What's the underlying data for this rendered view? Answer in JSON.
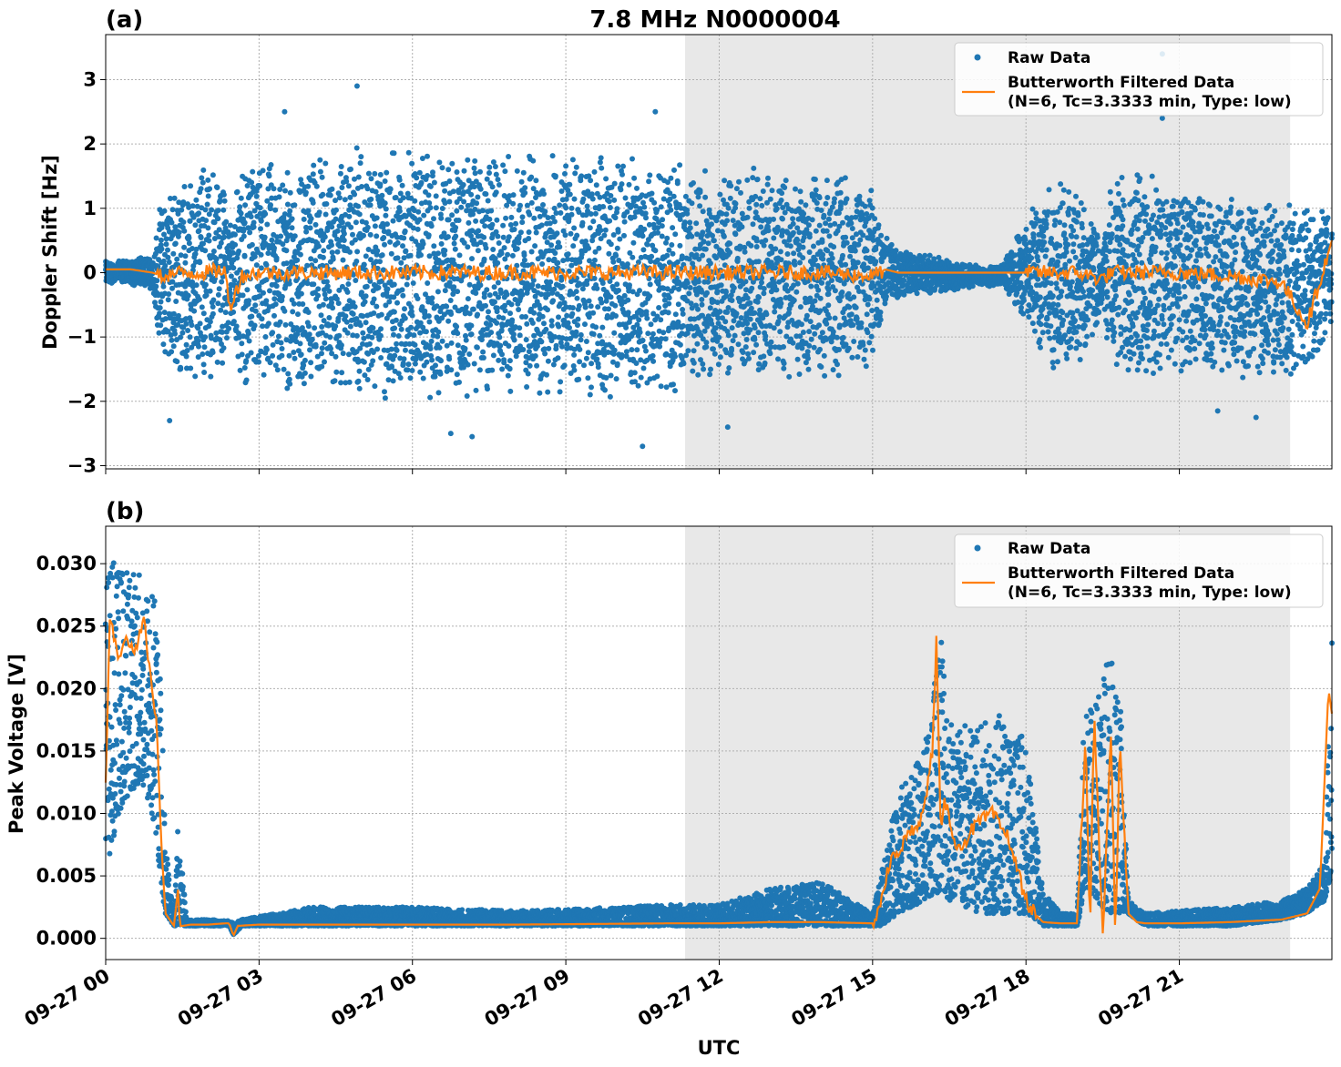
{
  "title": "7.8 MHz N0000004",
  "xlabel": "UTC",
  "x_tick_labels": [
    "09-27 00",
    "09-27 03",
    "09-27 06",
    "09-27 09",
    "09-27 12",
    "09-27 15",
    "09-27 18",
    "09-27 21"
  ],
  "colors": {
    "raw": "#1f77b4",
    "filtered": "#ff7f0e",
    "night_shade": "#e8e8e8"
  },
  "chart_data": [
    {
      "type": "scatter",
      "panel_label": "(a)",
      "ylabel": "Doppler Shift [Hz]",
      "xlim": [
        "2023-09-27 00:00",
        "2023-09-27 23:59"
      ],
      "ylim": [
        -3.05,
        3.7
      ],
      "yticks": [
        -3,
        -2,
        -1,
        0,
        1,
        2,
        3
      ],
      "ytick_labels": [
        "−3",
        "−2",
        "−1",
        "0",
        "1",
        "2",
        "3"
      ],
      "grid": true,
      "legend_position": "top-right",
      "shaded_interval": [
        "2023-09-27 11:20",
        "2023-09-27 23:10"
      ],
      "series": [
        {
          "name": "Raw Data",
          "kind": "points",
          "x": [
            "00:00",
            "00:30",
            "00:55",
            "01:05",
            "01:30",
            "02:00",
            "02:20",
            "02:25",
            "02:40",
            "03:00",
            "04:00",
            "05:00",
            "06:00",
            "07:00",
            "08:00",
            "09:00",
            "10:00",
            "11:00",
            "12:00",
            "13:00",
            "14:00",
            "15:00",
            "15:15",
            "15:30",
            "16:30",
            "17:30",
            "18:10",
            "18:30",
            "19:00",
            "19:30",
            "19:40",
            "20:00",
            "21:00",
            "22:00",
            "23:00",
            "23:59"
          ],
          "y_spread_high": [
            0.2,
            0.2,
            0.3,
            1.2,
            1.6,
            1.8,
            1.8,
            0.8,
            1.9,
            1.8,
            1.9,
            2.0,
            2.0,
            2.0,
            2.0,
            1.9,
            1.9,
            1.8,
            1.7,
            1.6,
            1.6,
            1.5,
            0.6,
            0.4,
            0.2,
            0.1,
            1.1,
            1.5,
            1.5,
            0.5,
            1.5,
            1.8,
            1.4,
            1.2,
            1.2,
            1.0
          ],
          "y_spread_low": [
            -0.2,
            -0.2,
            -0.3,
            -1.4,
            -1.8,
            -1.8,
            -1.8,
            -0.8,
            -1.9,
            -1.9,
            -2.0,
            -2.0,
            -2.0,
            -2.0,
            -2.0,
            -2.0,
            -2.0,
            -1.9,
            -1.7,
            -1.7,
            -1.7,
            -1.5,
            -0.5,
            -0.4,
            -0.3,
            -0.2,
            -1.1,
            -1.6,
            -1.7,
            -0.6,
            -1.6,
            -1.8,
            -1.6,
            -1.6,
            -1.8,
            -1.2
          ],
          "outliers": [
            {
              "x": "04:55",
              "y": 2.9
            },
            {
              "x": "03:30",
              "y": 2.5
            },
            {
              "x": "10:45",
              "y": 2.5
            },
            {
              "x": "10:30",
              "y": -2.7
            },
            {
              "x": "06:45",
              "y": -2.5
            },
            {
              "x": "07:10",
              "y": -2.55
            },
            {
              "x": "01:15",
              "y": -2.3
            },
            {
              "x": "20:40",
              "y": 3.4
            },
            {
              "x": "20:40",
              "y": 2.4
            },
            {
              "x": "21:45",
              "y": -2.15
            },
            {
              "x": "22:30",
              "y": -2.25
            },
            {
              "x": "12:10",
              "y": -2.4
            }
          ]
        },
        {
          "name": "Butterworth Filtered Data\n(N=6, Tc=3.3333 min, Type: low)",
          "kind": "line",
          "x": [
            "00:00",
            "00:30",
            "00:55",
            "01:05",
            "01:30",
            "02:00",
            "02:20",
            "02:25",
            "02:40",
            "03:00",
            "04:00",
            "05:00",
            "06:00",
            "07:00",
            "08:00",
            "09:00",
            "10:00",
            "11:00",
            "12:00",
            "13:00",
            "14:00",
            "15:00",
            "15:15",
            "15:30",
            "16:30",
            "17:30",
            "18:10",
            "18:30",
            "19:00",
            "19:30",
            "19:40",
            "20:00",
            "21:00",
            "22:00",
            "23:00",
            "23:30",
            "23:59"
          ],
          "y": [
            0.05,
            0.05,
            0.0,
            -0.05,
            0.0,
            0.0,
            0.05,
            -0.55,
            -0.05,
            0.0,
            0.0,
            0.0,
            0.0,
            0.0,
            0.0,
            0.0,
            0.0,
            0.0,
            0.0,
            0.0,
            0.0,
            -0.05,
            0.05,
            0.0,
            0.0,
            0.0,
            0.0,
            0.0,
            0.0,
            -0.1,
            0.0,
            0.0,
            0.0,
            -0.05,
            -0.15,
            -0.8,
            0.5
          ]
        }
      ]
    },
    {
      "type": "scatter",
      "panel_label": "(b)",
      "ylabel": "Peak Voltage [V]",
      "xlim": [
        "2023-09-27 00:00",
        "2023-09-27 23:59"
      ],
      "ylim": [
        -0.0017,
        0.033
      ],
      "yticks": [
        0.0,
        0.005,
        0.01,
        0.015,
        0.02,
        0.025,
        0.03
      ],
      "ytick_labels": [
        "0.000",
        "0.005",
        "0.010",
        "0.015",
        "0.020",
        "0.025",
        "0.030"
      ],
      "grid": true,
      "legend_position": "top-right",
      "shaded_interval": [
        "2023-09-27 11:20",
        "2023-09-27 23:10"
      ],
      "series": [
        {
          "name": "Raw Data",
          "kind": "points",
          "x": [
            "00:00",
            "00:15",
            "00:30",
            "00:45",
            "01:00",
            "01:05",
            "01:10",
            "01:20",
            "01:25",
            "01:35",
            "02:00",
            "02:25",
            "02:30",
            "02:40",
            "04:00",
            "06:00",
            "08:00",
            "10:00",
            "11:00",
            "12:00",
            "13:00",
            "14:00",
            "15:00",
            "15:10",
            "15:30",
            "16:00",
            "16:10",
            "16:20",
            "16:30",
            "17:00",
            "17:30",
            "18:00",
            "18:20",
            "18:40",
            "19:00",
            "19:10",
            "19:20",
            "19:40",
            "19:50",
            "20:00",
            "20:20",
            "21:00",
            "22:00",
            "23:00",
            "23:30",
            "23:50",
            "23:59"
          ],
          "y_low": [
            0.005,
            0.01,
            0.012,
            0.012,
            0.008,
            0.004,
            0.002,
            0.001,
            0.001,
            0.001,
            0.001,
            0.001,
            0.0003,
            0.001,
            0.001,
            0.001,
            0.001,
            0.001,
            0.001,
            0.001,
            0.001,
            0.001,
            0.001,
            0.001,
            0.002,
            0.003,
            0.003,
            0.004,
            0.003,
            0.002,
            0.002,
            0.002,
            0.001,
            0.001,
            0.001,
            0.004,
            0.003,
            0.002,
            0.002,
            0.002,
            0.001,
            0.001,
            0.001,
            0.0015,
            0.002,
            0.003,
            0.005
          ],
          "y_high": [
            0.031,
            0.03,
            0.03,
            0.029,
            0.028,
            0.02,
            0.008,
            0.002,
            0.0095,
            0.0015,
            0.0015,
            0.0014,
            0.0012,
            0.0015,
            0.0025,
            0.0025,
            0.0022,
            0.0025,
            0.0027,
            0.0027,
            0.004,
            0.0045,
            0.002,
            0.005,
            0.012,
            0.015,
            0.02,
            0.027,
            0.018,
            0.017,
            0.018,
            0.016,
            0.004,
            0.002,
            0.002,
            0.021,
            0.019,
            0.024,
            0.022,
            0.003,
            0.002,
            0.0022,
            0.0025,
            0.003,
            0.004,
            0.006,
            0.025
          ]
        },
        {
          "name": "Butterworth Filtered Data\n(N=6, Tc=3.3333 min, Type: low)",
          "kind": "line",
          "x": [
            "00:00",
            "00:05",
            "00:15",
            "00:25",
            "00:35",
            "00:45",
            "00:55",
            "01:00",
            "01:05",
            "01:10",
            "01:20",
            "01:25",
            "01:27",
            "01:30",
            "01:40",
            "02:00",
            "02:20",
            "02:25",
            "02:30",
            "02:35",
            "03:00",
            "05:00",
            "08:00",
            "11:00",
            "12:00",
            "13:00",
            "14:00",
            "15:00",
            "15:10",
            "15:20",
            "15:40",
            "16:00",
            "16:10",
            "16:15",
            "16:20",
            "16:25",
            "16:40",
            "17:00",
            "17:20",
            "17:40",
            "18:00",
            "18:10",
            "18:20",
            "18:40",
            "19:00",
            "19:10",
            "19:15",
            "19:20",
            "19:30",
            "19:40",
            "19:45",
            "19:50",
            "20:00",
            "20:10",
            "20:20",
            "21:00",
            "22:00",
            "23:00",
            "23:30",
            "23:45",
            "23:55",
            "23:59"
          ],
          "y": [
            0.012,
            0.026,
            0.022,
            0.024,
            0.023,
            0.026,
            0.019,
            0.017,
            0.008,
            0.002,
            0.001,
            0.004,
            0.001,
            0.001,
            0.0011,
            0.0011,
            0.0012,
            0.0012,
            0.0002,
            0.001,
            0.0011,
            0.0011,
            0.0011,
            0.0012,
            0.0012,
            0.0013,
            0.0013,
            0.0012,
            0.003,
            0.006,
            0.008,
            0.01,
            0.015,
            0.024,
            0.008,
            0.011,
            0.007,
            0.009,
            0.01,
            0.008,
            0.003,
            0.002,
            0.0013,
            0.0012,
            0.0012,
            0.016,
            0.0,
            0.018,
            0.0,
            0.017,
            -0.0003,
            0.016,
            0.002,
            0.0013,
            0.0012,
            0.0012,
            0.0013,
            0.0015,
            0.002,
            0.004,
            0.02,
            0.018
          ]
        }
      ]
    }
  ]
}
